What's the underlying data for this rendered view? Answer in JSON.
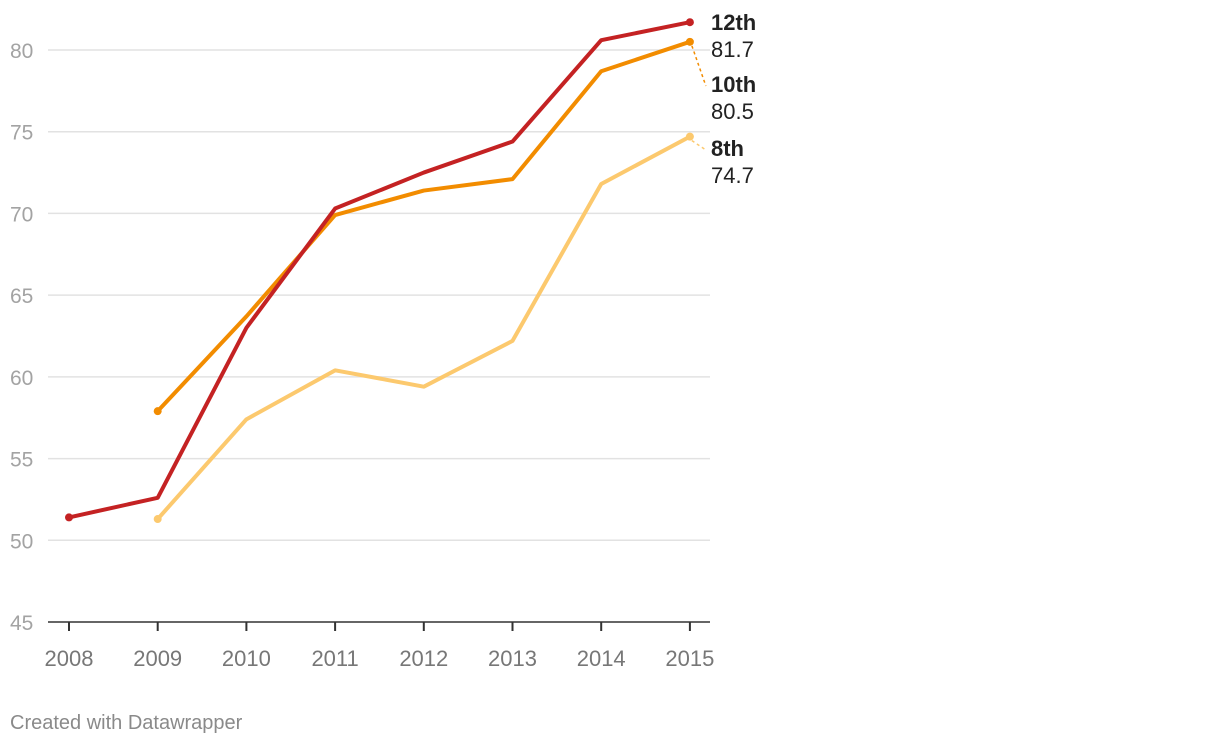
{
  "chart_data": {
    "type": "line",
    "x": [
      "2008",
      "2009",
      "2010",
      "2011",
      "2012",
      "2013",
      "2014",
      "2015"
    ],
    "y_ticks": [
      "45",
      "50",
      "55",
      "60",
      "65",
      "70",
      "75",
      "80"
    ],
    "ylim": [
      45,
      80
    ],
    "grid": true,
    "series": [
      {
        "name": "8th",
        "color": "#fcc96e",
        "value_label": "74.7",
        "values": [
          null,
          51.3,
          57.4,
          60.4,
          59.4,
          62.2,
          71.8,
          74.7
        ]
      },
      {
        "name": "10th",
        "color": "#f28c00",
        "value_label": "80.5",
        "values": [
          null,
          57.9,
          63.7,
          69.9,
          71.4,
          72.1,
          78.7,
          80.5
        ]
      },
      {
        "name": "12th",
        "color": "#c42223",
        "value_label": "81.7",
        "values": [
          51.4,
          52.6,
          63.0,
          70.3,
          72.5,
          74.4,
          80.6,
          81.7
        ]
      }
    ]
  },
  "footer": {
    "credit": "Created with Datawrapper"
  }
}
